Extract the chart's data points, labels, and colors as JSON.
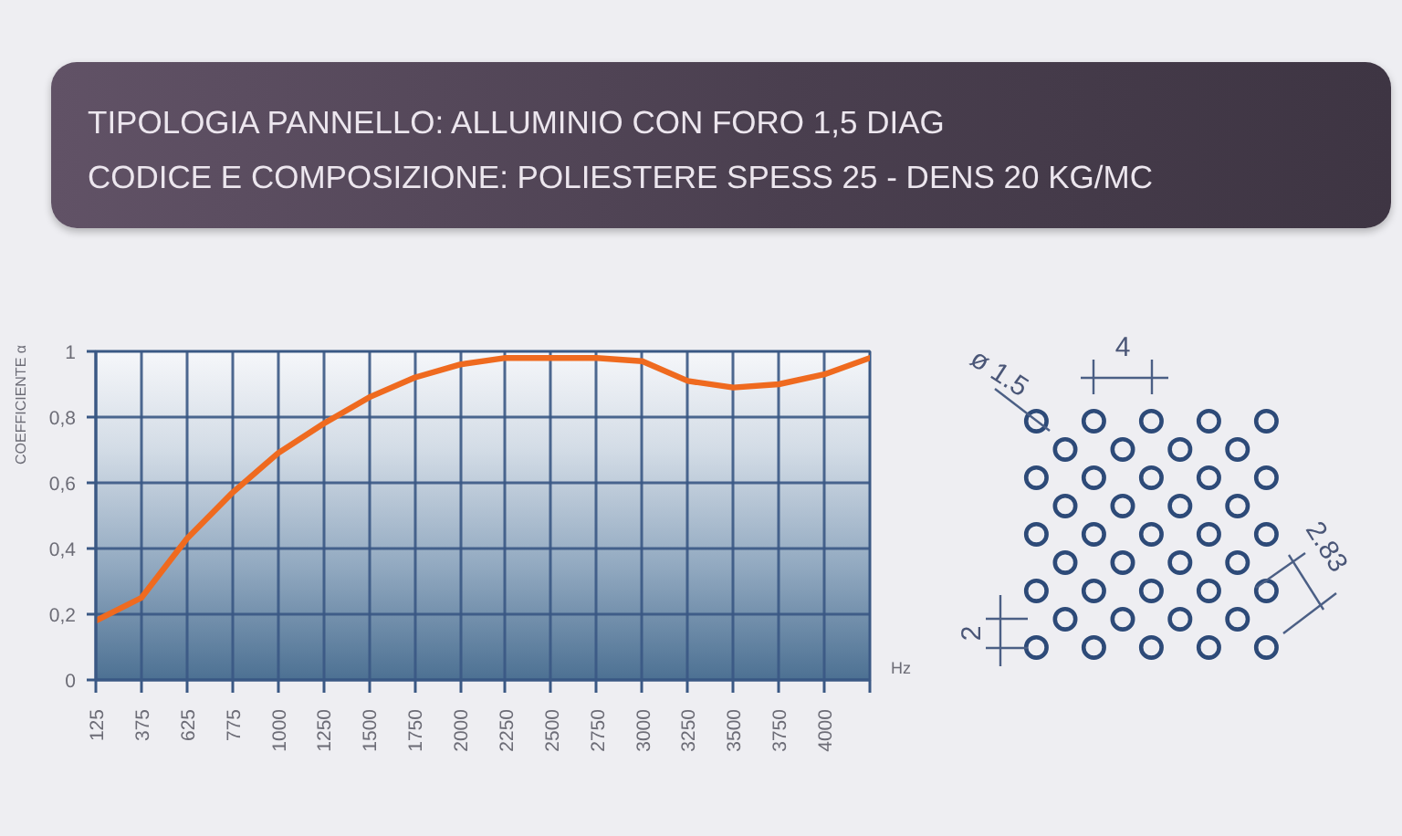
{
  "chart_data": {
    "type": "line",
    "title": "TIPOLOGIA PANNELLO: ALLUMINIO CON FORO 1,5 DIAG",
    "subtitle": "CODICE E COMPOSIZIONE: POLIESTERE SPESS 25 - DENS 20 KG/MC",
    "xlabel": "Hz",
    "ylabel": "COEFFICIENTE α",
    "categories": [
      "125",
      "375",
      "625",
      "775",
      "1000",
      "1250",
      "1500",
      "1750",
      "2000",
      "2250",
      "2500",
      "2750",
      "3000",
      "3250",
      "3500",
      "3750",
      "4000",
      null
    ],
    "series": [
      {
        "color": "#ef6a1f",
        "values": [
          0.18,
          0.25,
          0.43,
          0.57,
          0.69,
          0.78,
          0.86,
          0.92,
          0.96,
          0.98,
          0.98,
          0.98,
          0.97,
          0.91,
          0.89,
          0.9,
          0.93,
          0.98
        ]
      }
    ],
    "ylim": [
      0,
      1
    ],
    "yticks": [
      0,
      {
        "value": 0.2,
        "label": "0,2"
      },
      {
        "value": 0.4,
        "label": "0,4"
      },
      {
        "value": 0.6,
        "label": "0,6"
      },
      {
        "value": 0.8,
        "label": "0,8"
      },
      1
    ],
    "grid": true,
    "line_style": "solid",
    "annotations": [
      "ø 1.5",
      "4",
      "2.83",
      "2"
    ]
  }
}
